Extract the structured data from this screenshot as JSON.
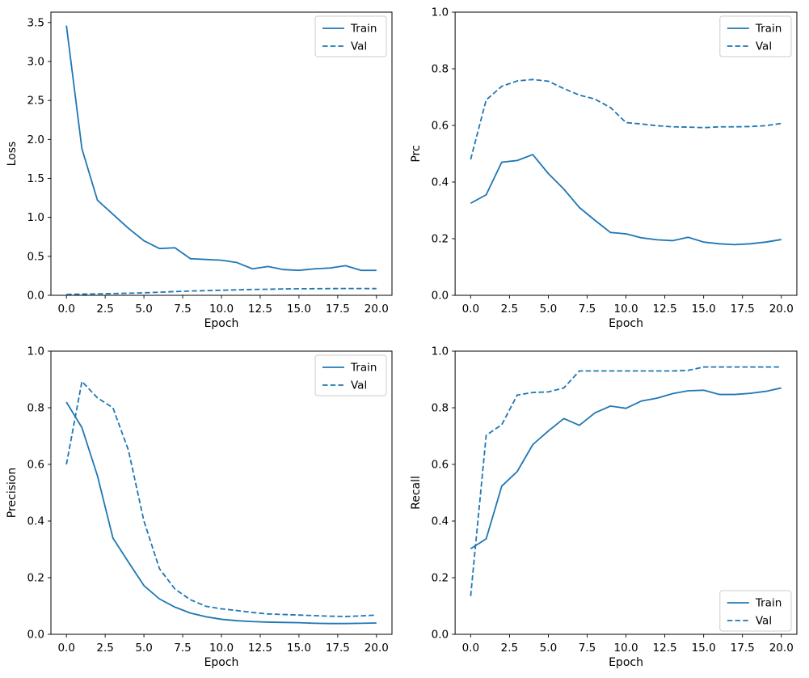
{
  "figure": {
    "background": "#ffffff",
    "rows": 2,
    "cols": 2
  },
  "colors": {
    "line": "#1f77b4",
    "text": "#000000",
    "spine": "#000000",
    "legend_border": "#cccccc",
    "legend_background": "#ffffff"
  },
  "legend": {
    "train_label": "Train",
    "val_label": "Val"
  },
  "chart_data": [
    {
      "type": "line",
      "title": "",
      "xlabel": "Epoch",
      "ylabel": "Loss",
      "grid": false,
      "legend_position": "upper-right",
      "xlim": [
        -1,
        21
      ],
      "ylim": [
        0,
        3.633
      ],
      "xticks": [
        0,
        2.5,
        5,
        7.5,
        10,
        12.5,
        15,
        17.5,
        20
      ],
      "xtick_labels": [
        "0.0",
        "2.5",
        "5.0",
        "7.5",
        "10.0",
        "12.5",
        "15.0",
        "17.5",
        "20.0"
      ],
      "yticks": [
        0,
        0.5,
        1.0,
        1.5,
        2.0,
        2.5,
        3.0,
        3.5
      ],
      "ytick_labels": [
        "0.0",
        "0.5",
        "1.0",
        "1.5",
        "2.0",
        "2.5",
        "3.0",
        "3.5"
      ],
      "x": [
        0,
        1,
        2,
        3,
        4,
        5,
        6,
        7,
        8,
        9,
        10,
        11,
        12,
        13,
        14,
        15,
        16,
        17,
        18,
        19,
        20
      ],
      "series": [
        {
          "name": "Train",
          "style": "solid",
          "values": [
            3.46,
            1.88,
            1.22,
            1.04,
            0.86,
            0.7,
            0.6,
            0.61,
            0.47,
            0.46,
            0.45,
            0.42,
            0.34,
            0.37,
            0.33,
            0.32,
            0.34,
            0.35,
            0.38,
            0.32,
            0.32
          ]
        },
        {
          "name": "Val",
          "style": "dashed",
          "values": [
            0.012,
            0.015,
            0.018,
            0.022,
            0.027,
            0.032,
            0.04,
            0.048,
            0.055,
            0.06,
            0.065,
            0.07,
            0.075,
            0.078,
            0.082,
            0.084,
            0.085,
            0.086,
            0.087,
            0.087,
            0.086
          ]
        }
      ]
    },
    {
      "type": "line",
      "title": "",
      "xlabel": "Epoch",
      "ylabel": "Prc",
      "grid": false,
      "legend_position": "upper-right",
      "xlim": [
        -1,
        21
      ],
      "ylim": [
        0,
        1.0
      ],
      "xticks": [
        0,
        2.5,
        5,
        7.5,
        10,
        12.5,
        15,
        17.5,
        20
      ],
      "xtick_labels": [
        "0.0",
        "2.5",
        "5.0",
        "7.5",
        "10.0",
        "12.5",
        "15.0",
        "17.5",
        "20.0"
      ],
      "yticks": [
        0,
        0.2,
        0.4,
        0.6,
        0.8,
        1.0
      ],
      "ytick_labels": [
        "0.0",
        "0.2",
        "0.4",
        "0.6",
        "0.8",
        "1.0"
      ],
      "x": [
        0,
        1,
        2,
        3,
        4,
        5,
        6,
        7,
        8,
        9,
        10,
        11,
        12,
        13,
        14,
        15,
        16,
        17,
        18,
        19,
        20
      ],
      "series": [
        {
          "name": "Train",
          "style": "solid",
          "values": [
            0.325,
            0.355,
            0.47,
            0.476,
            0.497,
            0.43,
            0.375,
            0.31,
            0.265,
            0.222,
            0.217,
            0.203,
            0.196,
            0.193,
            0.205,
            0.188,
            0.182,
            0.179,
            0.182,
            0.188,
            0.197
          ]
        },
        {
          "name": "Val",
          "style": "dashed",
          "values": [
            0.48,
            0.69,
            0.738,
            0.757,
            0.762,
            0.756,
            0.73,
            0.707,
            0.693,
            0.663,
            0.61,
            0.605,
            0.599,
            0.595,
            0.594,
            0.592,
            0.595,
            0.595,
            0.596,
            0.599,
            0.607
          ]
        }
      ]
    },
    {
      "type": "line",
      "title": "",
      "xlabel": "Epoch",
      "ylabel": "Precision",
      "grid": false,
      "legend_position": "upper-right",
      "xlim": [
        -1,
        21
      ],
      "ylim": [
        0,
        1.0
      ],
      "xticks": [
        0,
        2.5,
        5,
        7.5,
        10,
        12.5,
        15,
        17.5,
        20
      ],
      "xtick_labels": [
        "0.0",
        "2.5",
        "5.0",
        "7.5",
        "10.0",
        "12.5",
        "15.0",
        "17.5",
        "20.0"
      ],
      "yticks": [
        0,
        0.2,
        0.4,
        0.6,
        0.8,
        1.0
      ],
      "ytick_labels": [
        "0.0",
        "0.2",
        "0.4",
        "0.6",
        "0.8",
        "1.0"
      ],
      "x": [
        0,
        1,
        2,
        3,
        4,
        5,
        6,
        7,
        8,
        9,
        10,
        11,
        12,
        13,
        14,
        15,
        16,
        17,
        18,
        19,
        20
      ],
      "series": [
        {
          "name": "Train",
          "style": "solid",
          "values": [
            0.82,
            0.73,
            0.56,
            0.34,
            0.255,
            0.172,
            0.125,
            0.096,
            0.075,
            0.062,
            0.053,
            0.048,
            0.045,
            0.043,
            0.042,
            0.041,
            0.039,
            0.038,
            0.038,
            0.039,
            0.04
          ]
        },
        {
          "name": "Val",
          "style": "dashed",
          "values": [
            0.6,
            0.893,
            0.835,
            0.8,
            0.65,
            0.4,
            0.232,
            0.16,
            0.122,
            0.099,
            0.09,
            0.084,
            0.077,
            0.072,
            0.07,
            0.068,
            0.066,
            0.064,
            0.063,
            0.065,
            0.068
          ]
        }
      ]
    },
    {
      "type": "line",
      "title": "",
      "xlabel": "Epoch",
      "ylabel": "Recall",
      "grid": false,
      "legend_position": "lower-right",
      "xlim": [
        -1,
        21
      ],
      "ylim": [
        0,
        1.0
      ],
      "xticks": [
        0,
        2.5,
        5,
        7.5,
        10,
        12.5,
        15,
        17.5,
        20
      ],
      "xtick_labels": [
        "0.0",
        "2.5",
        "5.0",
        "7.5",
        "10.0",
        "12.5",
        "15.0",
        "17.5",
        "20.0"
      ],
      "yticks": [
        0,
        0.2,
        0.4,
        0.6,
        0.8,
        1.0
      ],
      "ytick_labels": [
        "0.0",
        "0.2",
        "0.4",
        "0.6",
        "0.8",
        "1.0"
      ],
      "x": [
        0,
        1,
        2,
        3,
        4,
        5,
        6,
        7,
        8,
        9,
        10,
        11,
        12,
        13,
        14,
        15,
        16,
        17,
        18,
        19,
        20
      ],
      "series": [
        {
          "name": "Train",
          "style": "solid",
          "values": [
            0.302,
            0.337,
            0.523,
            0.575,
            0.67,
            0.718,
            0.762,
            0.738,
            0.782,
            0.806,
            0.798,
            0.824,
            0.834,
            0.85,
            0.86,
            0.862,
            0.847,
            0.847,
            0.851,
            0.858,
            0.87
          ]
        },
        {
          "name": "Val",
          "style": "dashed",
          "values": [
            0.135,
            0.703,
            0.74,
            0.845,
            0.854,
            0.856,
            0.87,
            0.93,
            0.93,
            0.93,
            0.93,
            0.93,
            0.93,
            0.93,
            0.932,
            0.944,
            0.944,
            0.944,
            0.944,
            0.944,
            0.944
          ]
        }
      ]
    }
  ]
}
